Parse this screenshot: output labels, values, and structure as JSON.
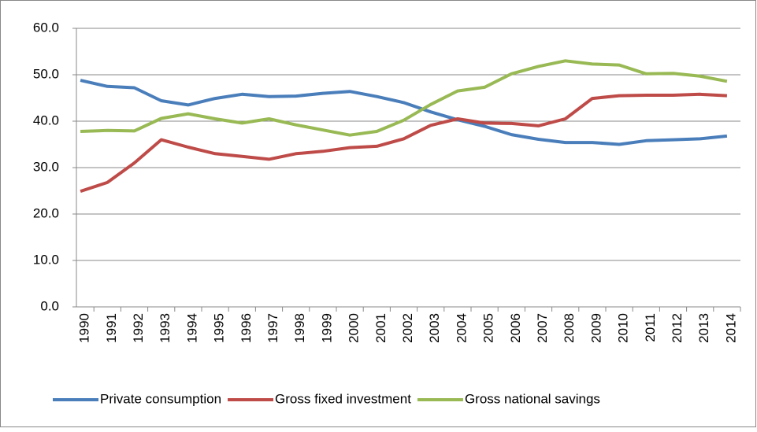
{
  "chart_data": {
    "type": "line",
    "categories": [
      "1990",
      "1991",
      "1992",
      "1993",
      "1994",
      "1995",
      "1996",
      "1997",
      "1998",
      "1999",
      "2000",
      "2001",
      "2002",
      "2003",
      "2004",
      "2005",
      "2006",
      "2007",
      "2008",
      "2009",
      "2010",
      "2011",
      "2012",
      "2013",
      "2014"
    ],
    "series": [
      {
        "name": "Private consumption",
        "color": "#4a7ebb",
        "values": [
          48.8,
          47.5,
          47.2,
          44.4,
          43.5,
          44.9,
          45.8,
          45.3,
          45.4,
          46.0,
          46.4,
          45.3,
          44.0,
          42.0,
          40.3,
          38.9,
          37.1,
          36.1,
          35.4,
          35.4,
          35.0,
          35.8,
          36.0,
          36.2,
          36.8
        ]
      },
      {
        "name": "Gross fixed investment",
        "color": "#be4b48",
        "values": [
          24.9,
          26.8,
          31.0,
          36.0,
          34.4,
          33.0,
          32.4,
          31.8,
          33.0,
          33.5,
          34.3,
          34.6,
          36.2,
          39.1,
          40.5,
          39.6,
          39.5,
          39.0,
          40.5,
          44.9,
          45.5,
          45.6,
          45.6,
          45.8,
          45.5
        ]
      },
      {
        "name": "Gross national savings",
        "color": "#98b954",
        "values": [
          37.8,
          38.0,
          37.9,
          40.6,
          41.6,
          40.5,
          39.6,
          40.5,
          39.2,
          38.1,
          37.0,
          37.8,
          40.2,
          43.6,
          46.5,
          47.3,
          50.2,
          51.8,
          53.0,
          52.3,
          52.1,
          50.2,
          50.3,
          49.7,
          48.6
        ]
      }
    ],
    "ylim": [
      0,
      60
    ],
    "yticks": [
      {
        "value": 0,
        "label": "0.0"
      },
      {
        "value": 10,
        "label": "10.0"
      },
      {
        "value": 20,
        "label": "20.0"
      },
      {
        "value": 30,
        "label": "30.0"
      },
      {
        "value": 40,
        "label": "40.0"
      },
      {
        "value": 50,
        "label": "50.0"
      },
      {
        "value": 60,
        "label": "60.0"
      }
    ],
    "grid": true,
    "legend": "bottom"
  }
}
